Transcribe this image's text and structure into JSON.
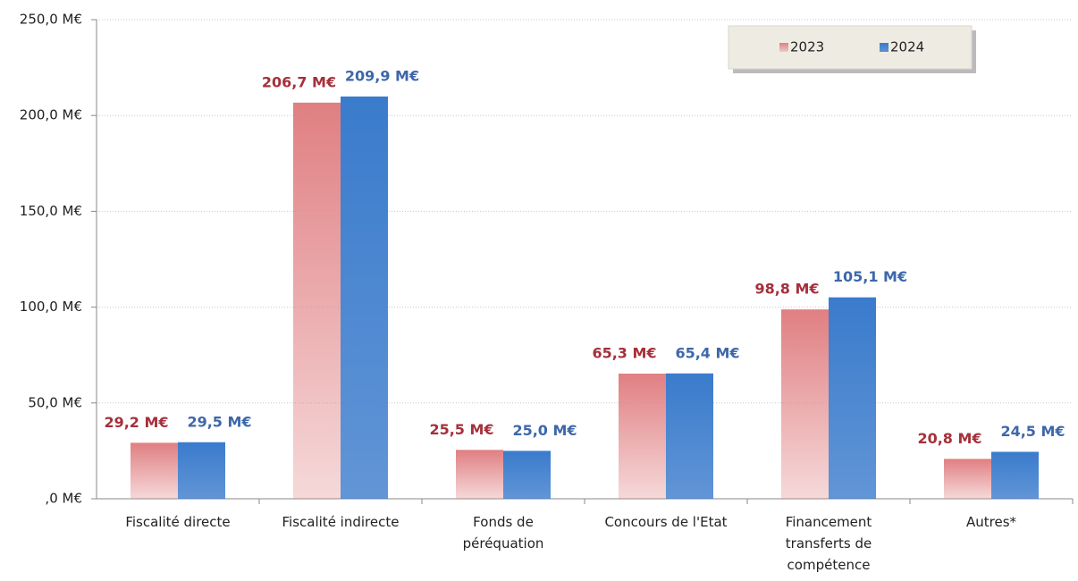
{
  "chart_data": {
    "type": "bar",
    "categories": [
      "Fiscalité directe",
      "Fiscalité indirecte",
      "Fonds de péréquation",
      "Concours de l'Etat",
      "Financement transferts de compétence",
      "Autres*"
    ],
    "series": [
      {
        "name": "2023",
        "color": "#e07f82",
        "values": [
          29.2,
          206.7,
          25.5,
          65.3,
          98.8,
          20.8
        ],
        "value_labels": [
          "29,2 M€",
          "206,7 M€",
          "25,5 M€",
          "65,3 M€",
          "98,8 M€",
          "20,8 M€"
        ]
      },
      {
        "name": "2024",
        "color": "#3a7bcc",
        "values": [
          29.5,
          209.9,
          25.0,
          65.4,
          105.1,
          24.5
        ],
        "value_labels": [
          "29,5 M€",
          "209,9 M€",
          "25,0 M€",
          "65,4 M€",
          "105,1 M€",
          "24,5 M€"
        ]
      }
    ],
    "ylim": [
      0,
      250
    ],
    "yticks": [
      {
        "value": 0,
        "label": ",0 M€"
      },
      {
        "value": 50,
        "label": "50,0 M€"
      },
      {
        "value": 100,
        "label": "100,0 M€"
      },
      {
        "value": 150,
        "label": "150,0 M€"
      },
      {
        "value": 200,
        "label": "200,0 M€"
      },
      {
        "value": 250,
        "label": "250,0 M€"
      }
    ],
    "grid": true,
    "legend": "top-right"
  }
}
